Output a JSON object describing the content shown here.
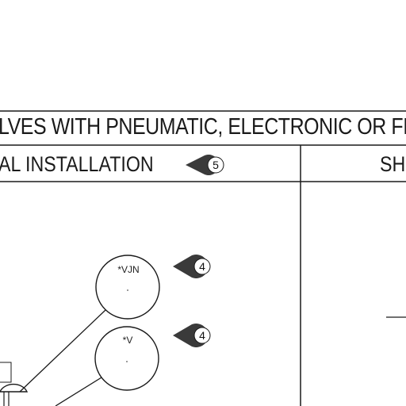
{
  "header": {
    "title": "LVES WITH PNEUMATIC, ELECTRONIC OR FIE",
    "left_column": "AL INSTALLATION",
    "right_column": "SH"
  },
  "callouts": [
    {
      "number": "5"
    },
    {
      "number": "4"
    },
    {
      "number": "4"
    }
  ],
  "instruments": [
    {
      "tag": "*VJN"
    },
    {
      "tag": "*V"
    }
  ],
  "colors": {
    "ink": "#1a1a1a",
    "marker_fill": "#3a3a3a",
    "marker_ring": "#ffffff"
  }
}
